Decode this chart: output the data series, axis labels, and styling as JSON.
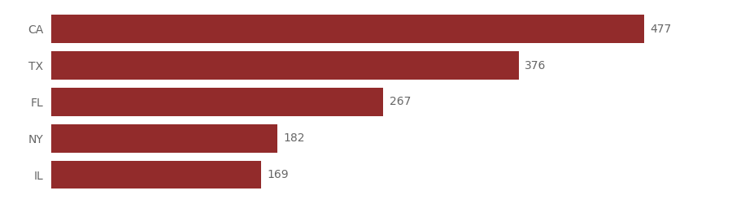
{
  "categories": [
    "IL",
    "NY",
    "FL",
    "TX",
    "CA"
  ],
  "values": [
    169,
    182,
    267,
    376,
    477
  ],
  "bar_color": "#922b2b",
  "background_color": "#ffffff",
  "value_color": "#666666",
  "label_color": "#666666",
  "value_fontsize": 10,
  "label_fontsize": 10,
  "xlim": [
    0,
    530
  ]
}
